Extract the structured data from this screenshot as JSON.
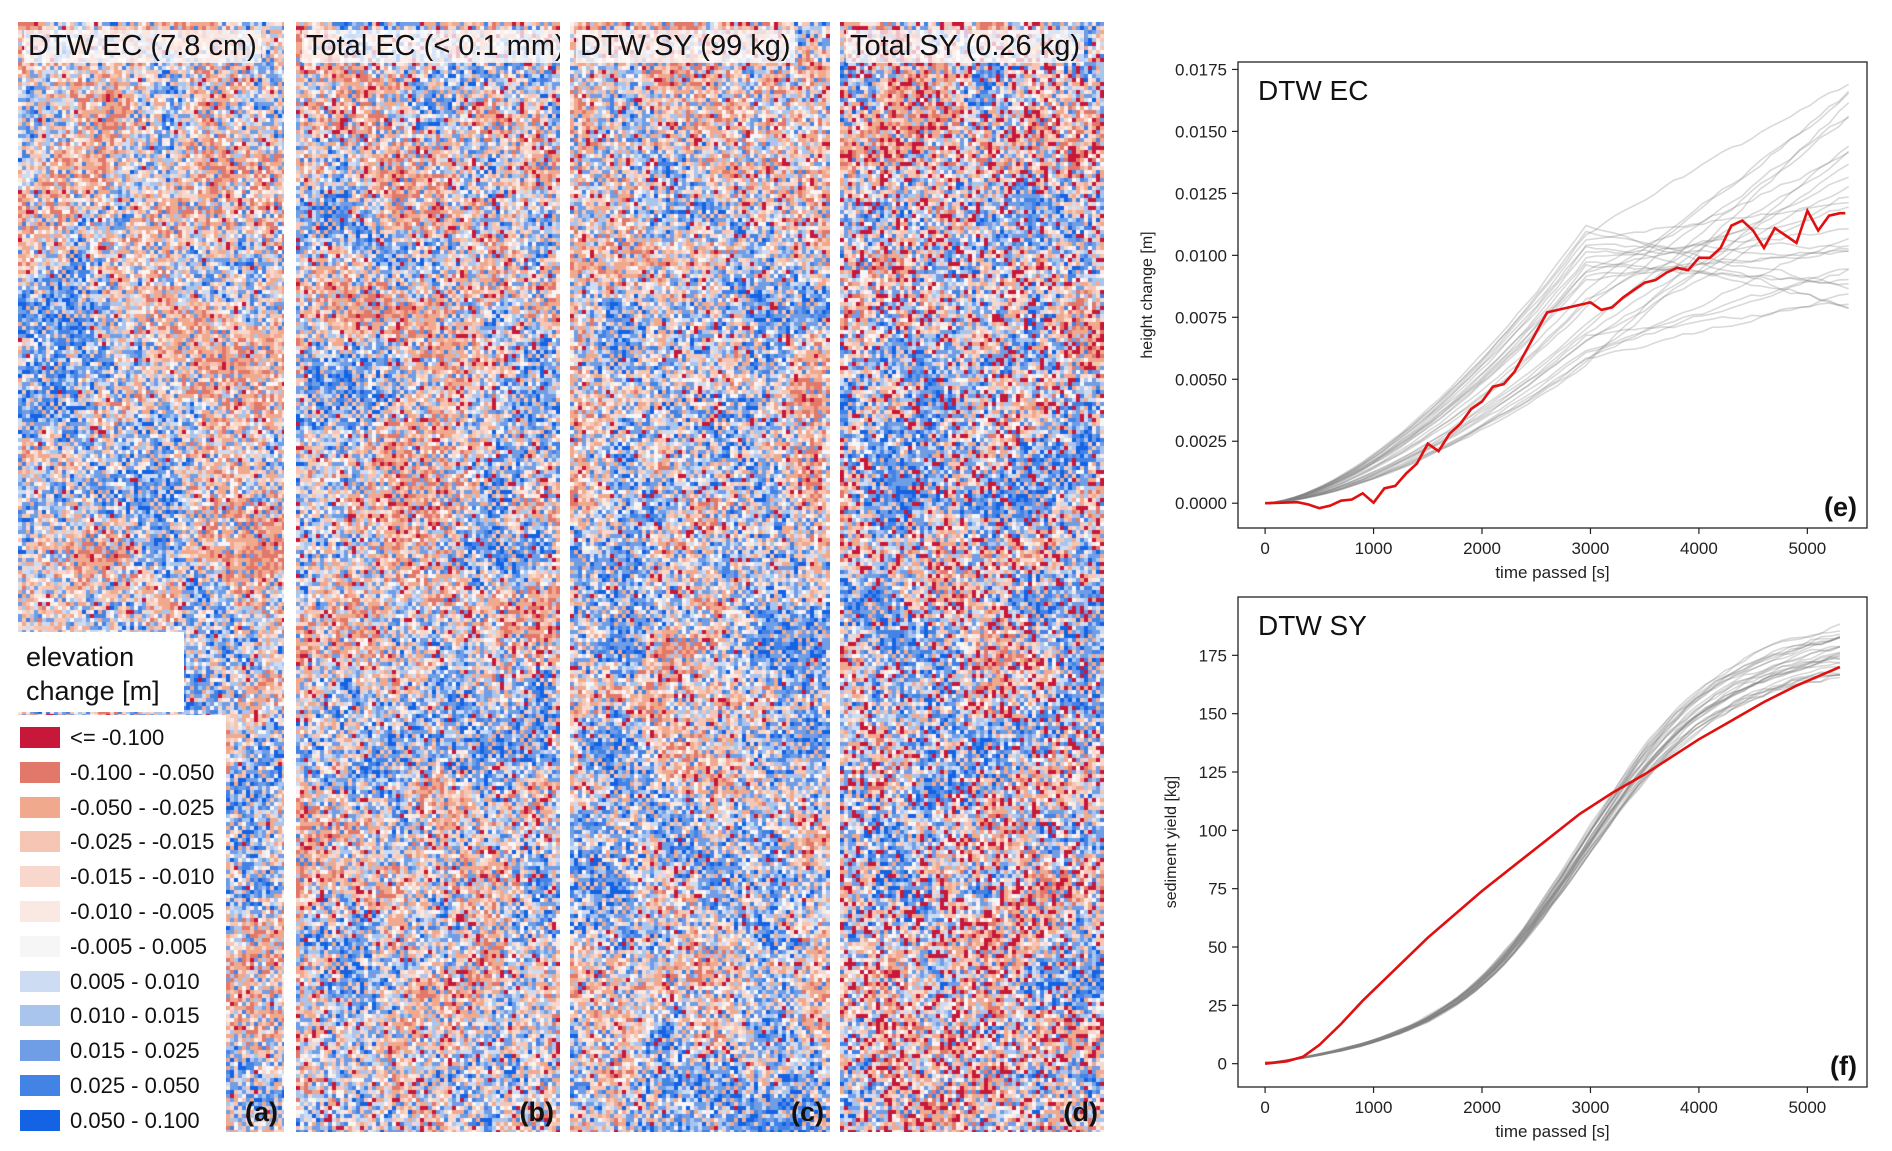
{
  "maps": [
    {
      "title": "DTW EC (7.8 cm)",
      "letter": "(a)",
      "seed": 11,
      "bias": 0.05,
      "dark": 0.05,
      "blue": 0.55
    },
    {
      "title": "Total EC (< 0.1 mm)",
      "letter": "(b)",
      "seed": 23,
      "bias": 0.35,
      "dark": 0.12,
      "blue": 0.45
    },
    {
      "title": "DTW SY (99 kg)",
      "letter": "(c)",
      "seed": 37,
      "bias": 0.3,
      "dark": 0.1,
      "blue": 0.45
    },
    {
      "title": "Total SY (0.26 kg)",
      "letter": "(d)",
      "seed": 53,
      "bias": 0.4,
      "dark": 0.3,
      "blue": 0.4
    }
  ],
  "legend": {
    "title_line1": "elevation",
    "title_line2": "change [m]",
    "items": [
      {
        "label": "<= -0.100",
        "color": "#c8183a"
      },
      {
        "label": "-0.100 - -0.050",
        "color": "#e2786a"
      },
      {
        "label": "-0.050 - -0.025",
        "color": "#f1a98e"
      },
      {
        "label": "-0.025 - -0.015",
        "color": "#f6c5b3"
      },
      {
        "label": "-0.015 - -0.010",
        "color": "#f8d8cc"
      },
      {
        "label": "-0.010 - -0.005",
        "color": "#fae8e2"
      },
      {
        "label": "-0.005 - 0.005",
        "color": "#f6f6f6"
      },
      {
        "label": "0.005 - 0.010",
        "color": "#cddcf3"
      },
      {
        "label": "0.010 - 0.015",
        "color": "#a9c5ee"
      },
      {
        "label": "0.015 - 0.025",
        "color": "#6f9de6"
      },
      {
        "label": "0.025 - 0.050",
        "color": "#4383e6"
      },
      {
        "label": "0.050 - 0.100",
        "color": "#1463e4"
      }
    ]
  },
  "chart_data": [
    {
      "type": "line",
      "panel": "(e)",
      "title": "DTW EC",
      "xlabel": "time passed [s]",
      "ylabel": "height change [m]",
      "xlim": [
        -250,
        5550
      ],
      "ylim": [
        -0.001,
        0.0178
      ],
      "xticks": [
        "0",
        "1000",
        "2000",
        "3000",
        "4000",
        "5000"
      ],
      "yticks": [
        "0.0000",
        "0.0025",
        "0.0050",
        "0.0075",
        "0.0100",
        "0.0125",
        "0.0150",
        "0.0175"
      ],
      "highlight_color": "#e01010",
      "ensemble_color": "#808080",
      "highlight": {
        "x": [
          0,
          150,
          300,
          400,
          500,
          600,
          700,
          800,
          900,
          1000,
          1100,
          1200,
          1300,
          1400,
          1500,
          1600,
          1700,
          1800,
          1900,
          2000,
          2100,
          2200,
          2300,
          2400,
          2500,
          2600,
          2700,
          2800,
          2900,
          3000,
          3100,
          3200,
          3300,
          3400,
          3500,
          3600,
          3700,
          3800,
          3900,
          4000,
          4100,
          4200,
          4300,
          4400,
          4500,
          4600,
          4700,
          4800,
          4900,
          5000,
          5100,
          5200,
          5300,
          5350
        ],
        "y": [
          0,
          2e-05,
          4e-05,
          -5e-05,
          -0.0002,
          -0.0001,
          0.0001,
          0.00015,
          0.0004,
          2e-05,
          0.0006,
          0.0007,
          0.0012,
          0.0016,
          0.0024,
          0.0021,
          0.0028,
          0.0032,
          0.0038,
          0.0041,
          0.0047,
          0.0048,
          0.0053,
          0.0061,
          0.0069,
          0.0077,
          0.0078,
          0.0079,
          0.008,
          0.0081,
          0.0078,
          0.0079,
          0.0083,
          0.0086,
          0.0089,
          0.009,
          0.0093,
          0.0095,
          0.0094,
          0.0099,
          0.0099,
          0.0103,
          0.0112,
          0.0114,
          0.011,
          0.0103,
          0.0111,
          0.0108,
          0.0105,
          0.0118,
          0.011,
          0.0116,
          0.0117,
          0.0117
        ]
      },
      "ensemble": {
        "count": 30,
        "x_end": 5380,
        "end_min": 0.0075,
        "end_max": 0.0174,
        "mid_min": 0.0055,
        "mid_max": 0.0113
      }
    },
    {
      "type": "line",
      "panel": "(f)",
      "title": "DTW SY",
      "xlabel": "time passed [s]",
      "ylabel": "sediment yield [kg]",
      "xlim": [
        -250,
        5550
      ],
      "ylim": [
        -10,
        200
      ],
      "xticks": [
        "0",
        "1000",
        "2000",
        "3000",
        "4000",
        "5000"
      ],
      "yticks": [
        "0",
        "25",
        "50",
        "75",
        "100",
        "125",
        "150",
        "175"
      ],
      "highlight_color": "#e01010",
      "ensemble_color": "#808080",
      "highlight": {
        "x": [
          0,
          200,
          350,
          500,
          700,
          900,
          1100,
          1300,
          1500,
          1700,
          2000,
          2300,
          2600,
          2900,
          3200,
          3500,
          3700,
          4000,
          4300,
          4600,
          4900,
          5100,
          5300
        ],
        "y": [
          0,
          1,
          3,
          8,
          17,
          27,
          36,
          45,
          54,
          62,
          74,
          85,
          96,
          107,
          116,
          124,
          130,
          139,
          147,
          155,
          162,
          166,
          170
        ]
      },
      "ensemble": {
        "count": 30,
        "x_end": 5300,
        "end_min": 165,
        "end_max": 188,
        "mid_min": 40,
        "mid_max": 90
      }
    }
  ]
}
